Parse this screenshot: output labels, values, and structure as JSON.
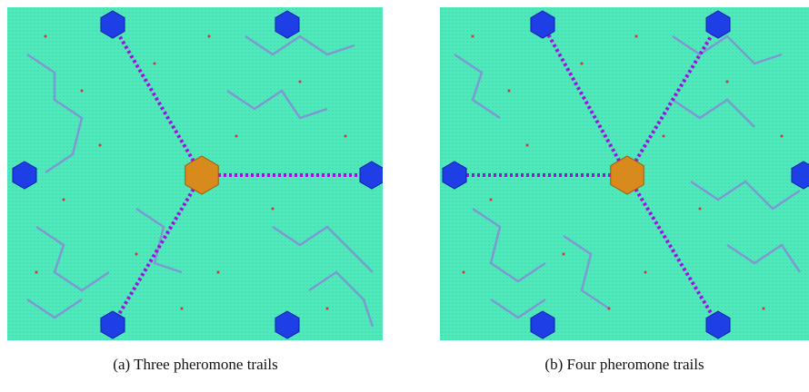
{
  "figure": {
    "panels": [
      {
        "caption": "(a) Three pheromone trails"
      },
      {
        "caption": "(b) Four pheromone trails"
      }
    ]
  }
}
